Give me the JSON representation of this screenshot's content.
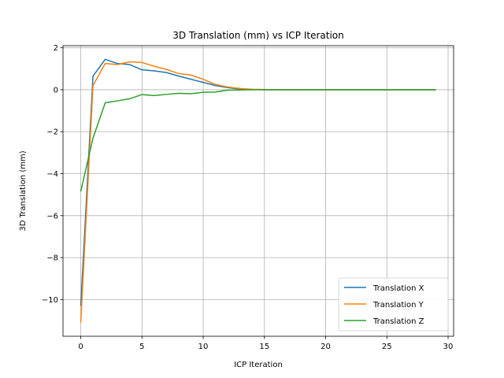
{
  "chart_data": {
    "type": "line",
    "title": "3D Translation (mm) vs ICP Iteration",
    "xlabel": "ICP Iteration",
    "ylabel": "3D Translation (mm)",
    "xlim": [
      -1.45,
      30.45
    ],
    "ylim": [
      -11.75,
      2.1
    ],
    "xticks": [
      0,
      5,
      10,
      15,
      20,
      25,
      30
    ],
    "yticks": [
      -10,
      -8,
      -6,
      -4,
      -2,
      0,
      2
    ],
    "xtick_labels": [
      "0",
      "5",
      "10",
      "15",
      "20",
      "25",
      "30"
    ],
    "ytick_labels": [
      "−10",
      "−8",
      "−6",
      "−4",
      "−2",
      "0",
      "2"
    ],
    "grid": true,
    "legend_position": "lower-right",
    "x": [
      0,
      1,
      2,
      3,
      4,
      5,
      6,
      7,
      8,
      9,
      10,
      11,
      12,
      13,
      14,
      15,
      16,
      17,
      18,
      19,
      20,
      21,
      22,
      23,
      24,
      25,
      26,
      27,
      28,
      29
    ],
    "series": [
      {
        "name": "Translation X",
        "color": "#1f77b4",
        "values": [
          -10.3,
          0.65,
          1.45,
          1.25,
          1.2,
          0.95,
          0.9,
          0.82,
          0.65,
          0.5,
          0.35,
          0.2,
          0.1,
          0.03,
          0.01,
          0.0,
          0.0,
          0.0,
          0.0,
          0.0,
          0.0,
          0.0,
          0.0,
          0.0,
          0.0,
          0.0,
          0.0,
          0.0,
          0.0,
          0.0
        ]
      },
      {
        "name": "Translation Y",
        "color": "#ff7f0e",
        "values": [
          -11.1,
          0.2,
          1.25,
          1.2,
          1.33,
          1.3,
          1.12,
          0.97,
          0.77,
          0.7,
          0.5,
          0.25,
          0.13,
          0.06,
          0.02,
          0.01,
          0.0,
          0.0,
          0.0,
          0.0,
          0.0,
          0.0,
          0.0,
          0.0,
          0.0,
          0.0,
          0.0,
          0.0,
          0.0,
          0.0
        ]
      },
      {
        "name": "Translation Z",
        "color": "#2ca02c",
        "values": [
          -4.85,
          -2.3,
          -0.62,
          -0.53,
          -0.43,
          -0.23,
          -0.28,
          -0.22,
          -0.17,
          -0.19,
          -0.12,
          -0.11,
          -0.02,
          -0.01,
          0.0,
          0.0,
          0.0,
          0.0,
          0.0,
          0.0,
          0.0,
          0.0,
          0.0,
          0.0,
          0.0,
          0.0,
          0.0,
          0.0,
          0.0,
          0.0
        ]
      }
    ]
  }
}
